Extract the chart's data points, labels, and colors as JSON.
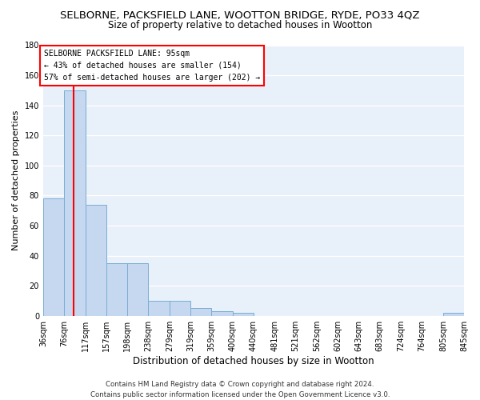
{
  "title": "SELBORNE, PACKSFIELD LANE, WOOTTON BRIDGE, RYDE, PO33 4QZ",
  "subtitle": "Size of property relative to detached houses in Wootton",
  "xlabel": "Distribution of detached houses by size in Wootton",
  "ylabel": "Number of detached properties",
  "bin_edges": [
    36,
    76,
    117,
    157,
    198,
    238,
    279,
    319,
    359,
    400,
    440,
    481,
    521,
    562,
    602,
    643,
    683,
    724,
    764,
    805,
    845
  ],
  "bar_heights": [
    78,
    150,
    74,
    35,
    35,
    10,
    10,
    5,
    3,
    2,
    0,
    0,
    0,
    0,
    0,
    0,
    0,
    0,
    0,
    2
  ],
  "bar_color": "#c5d8f0",
  "bar_edge_color": "#7aadd4",
  "red_line_x": 95,
  "ylim": [
    0,
    180
  ],
  "yticks": [
    0,
    20,
    40,
    60,
    80,
    100,
    120,
    140,
    160,
    180
  ],
  "annotation_title": "SELBORNE PACKSFIELD LANE: 95sqm",
  "annotation_line1": "← 43% of detached houses are smaller (154)",
  "annotation_line2": "57% of semi-detached houses are larger (202) →",
  "footer_line1": "Contains HM Land Registry data © Crown copyright and database right 2024.",
  "footer_line2": "Contains public sector information licensed under the Open Government Licence v3.0.",
  "background_color": "#e8f0fa",
  "grid_color": "#ffffff",
  "title_fontsize": 9.5,
  "subtitle_fontsize": 8.5,
  "axis_label_fontsize": 8,
  "tick_fontsize": 7,
  "annotation_fontsize": 7,
  "footer_fontsize": 6.2
}
